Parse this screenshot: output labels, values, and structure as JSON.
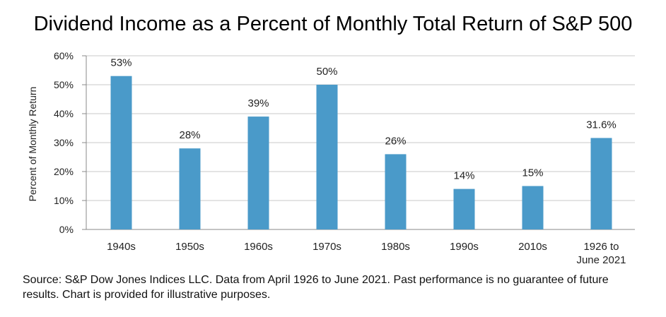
{
  "title": "Dividend Income as a Percent of Monthly Total Return of S&P 500",
  "source": "Source: S&P Dow Jones Indices LLC.  Data from April 1926 to June 2021.  Past performance is no guarantee of future results.  Chart is provided for illustrative purposes.",
  "colors": {
    "bar": "#4a9ac9",
    "grid": "#c8c8c8",
    "text": "#222222"
  },
  "chart_data": {
    "type": "bar",
    "title": "Dividend Income as a Percent of Monthly Total Return of S&P 500",
    "xlabel": "",
    "ylabel": "Percent of Monthly Return",
    "ylim": [
      0,
      60
    ],
    "yticks": [
      0,
      10,
      20,
      30,
      40,
      50,
      60
    ],
    "ytick_labels": [
      "0%",
      "10%",
      "20%",
      "30%",
      "40%",
      "50%",
      "60%"
    ],
    "grid": true,
    "categories": [
      [
        "1940s"
      ],
      [
        "1950s"
      ],
      [
        "1960s"
      ],
      [
        "1970s"
      ],
      [
        "1980s"
      ],
      [
        "1990s"
      ],
      [
        "2010s"
      ],
      [
        "1926 to",
        "June 2021"
      ]
    ],
    "values": [
      53,
      28,
      39,
      50,
      26,
      14,
      15,
      31.6
    ],
    "value_labels": [
      "53%",
      "28%",
      "39%",
      "50%",
      "26%",
      "14%",
      "15%",
      "31.6%"
    ]
  }
}
